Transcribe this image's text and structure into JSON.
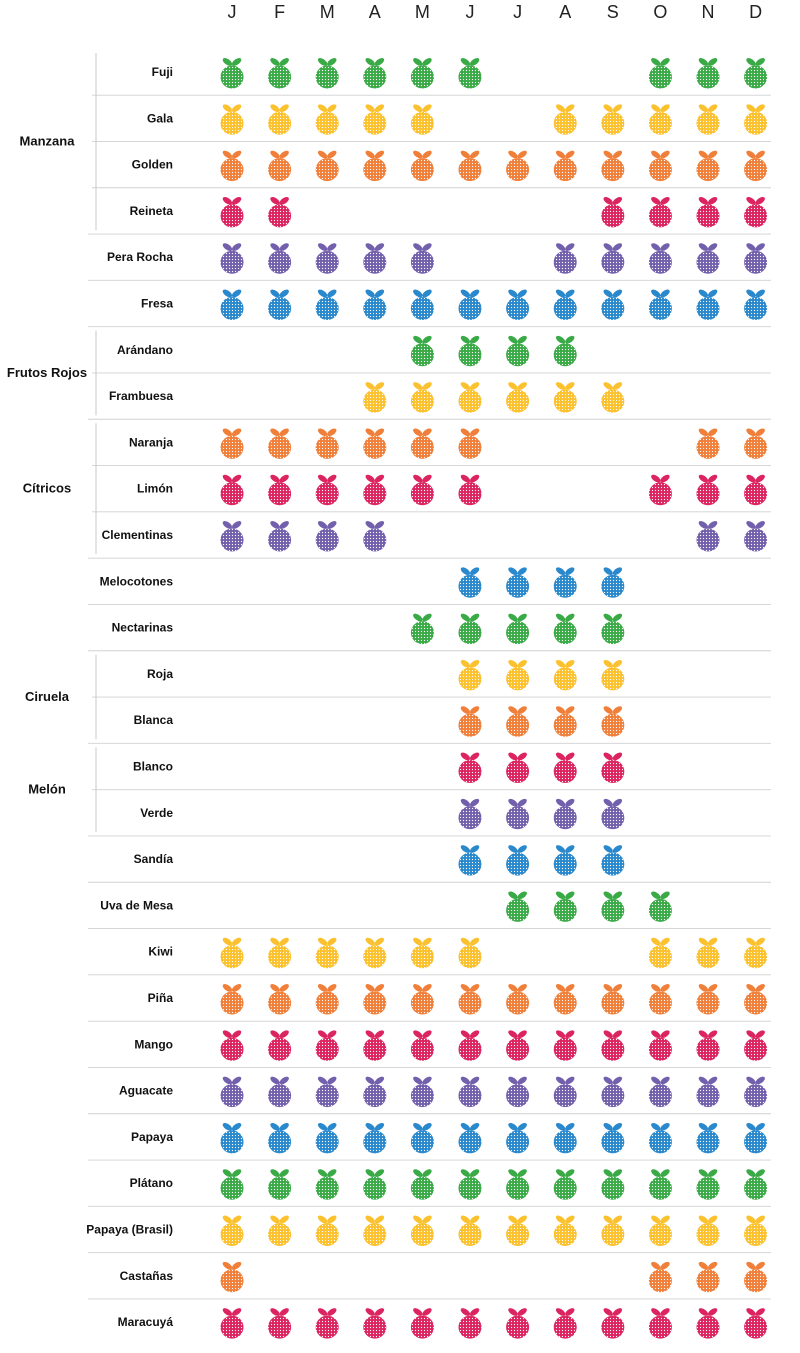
{
  "colors": {
    "green": "#3aaa47",
    "yellow": "#fbc12e",
    "orange": "#f07f3a",
    "red": "#dc2461",
    "purple": "#7360ad",
    "blue": "#2a88cc"
  },
  "chart_data": {
    "type": "table",
    "months": [
      "J",
      "F",
      "M",
      "A",
      "M",
      "J",
      "J",
      "A",
      "S",
      "O",
      "N",
      "D"
    ],
    "groups": [
      {
        "label": "Manzana",
        "first_row": 0,
        "last_row": 3
      },
      {
        "label": "Frutos Rojos",
        "first_row": 6,
        "last_row": 7
      },
      {
        "label": "Cítricos",
        "first_row": 8,
        "last_row": 10
      },
      {
        "label": "Ciruela",
        "first_row": 13,
        "last_row": 14
      },
      {
        "label": "Melón",
        "first_row": 15,
        "last_row": 16
      }
    ],
    "rows": [
      {
        "label": "Fuji",
        "color": "green",
        "months": [
          1,
          1,
          1,
          1,
          1,
          1,
          0,
          0,
          0,
          1,
          1,
          1
        ]
      },
      {
        "label": "Gala",
        "color": "yellow",
        "months": [
          1,
          1,
          1,
          1,
          1,
          0,
          0,
          1,
          1,
          1,
          1,
          1
        ]
      },
      {
        "label": "Golden",
        "color": "orange",
        "months": [
          1,
          1,
          1,
          1,
          1,
          1,
          1,
          1,
          1,
          1,
          1,
          1
        ]
      },
      {
        "label": "Reineta",
        "color": "red",
        "months": [
          1,
          1,
          0,
          0,
          0,
          0,
          0,
          0,
          1,
          1,
          1,
          1
        ]
      },
      {
        "label": "Pera Rocha",
        "color": "purple",
        "months": [
          1,
          1,
          1,
          1,
          1,
          0,
          0,
          1,
          1,
          1,
          1,
          1
        ]
      },
      {
        "label": "Fresa",
        "color": "blue",
        "months": [
          1,
          1,
          1,
          1,
          1,
          1,
          1,
          1,
          1,
          1,
          1,
          1
        ]
      },
      {
        "label": "Arándano",
        "color": "green",
        "months": [
          0,
          0,
          0,
          0,
          1,
          1,
          1,
          1,
          0,
          0,
          0,
          0
        ]
      },
      {
        "label": "Frambuesa",
        "color": "yellow",
        "months": [
          0,
          0,
          0,
          1,
          1,
          1,
          1,
          1,
          1,
          0,
          0,
          0
        ]
      },
      {
        "label": "Naranja",
        "color": "orange",
        "months": [
          1,
          1,
          1,
          1,
          1,
          1,
          0,
          0,
          0,
          0,
          1,
          1
        ]
      },
      {
        "label": "Limón",
        "color": "red",
        "months": [
          1,
          1,
          1,
          1,
          1,
          1,
          0,
          0,
          0,
          1,
          1,
          1
        ]
      },
      {
        "label": "Clementinas",
        "color": "purple",
        "months": [
          1,
          1,
          1,
          1,
          0,
          0,
          0,
          0,
          0,
          0,
          1,
          1
        ]
      },
      {
        "label": "Melocotones",
        "color": "blue",
        "months": [
          0,
          0,
          0,
          0,
          0,
          1,
          1,
          1,
          1,
          0,
          0,
          0
        ]
      },
      {
        "label": "Nectarinas",
        "color": "green",
        "months": [
          0,
          0,
          0,
          0,
          1,
          1,
          1,
          1,
          1,
          0,
          0,
          0
        ]
      },
      {
        "label": "Roja",
        "color": "yellow",
        "months": [
          0,
          0,
          0,
          0,
          0,
          1,
          1,
          1,
          1,
          0,
          0,
          0
        ]
      },
      {
        "label": "Blanca",
        "color": "orange",
        "months": [
          0,
          0,
          0,
          0,
          0,
          1,
          1,
          1,
          1,
          0,
          0,
          0
        ]
      },
      {
        "label": "Blanco",
        "color": "red",
        "months": [
          0,
          0,
          0,
          0,
          0,
          1,
          1,
          1,
          1,
          0,
          0,
          0
        ]
      },
      {
        "label": "Verde",
        "color": "purple",
        "months": [
          0,
          0,
          0,
          0,
          0,
          1,
          1,
          1,
          1,
          0,
          0,
          0
        ]
      },
      {
        "label": "Sandía",
        "color": "blue",
        "months": [
          0,
          0,
          0,
          0,
          0,
          1,
          1,
          1,
          1,
          0,
          0,
          0
        ]
      },
      {
        "label": "Uva de Mesa",
        "color": "green",
        "months": [
          0,
          0,
          0,
          0,
          0,
          0,
          1,
          1,
          1,
          1,
          0,
          0
        ]
      },
      {
        "label": "Kiwi",
        "color": "yellow",
        "months": [
          1,
          1,
          1,
          1,
          1,
          1,
          0,
          0,
          0,
          1,
          1,
          1
        ]
      },
      {
        "label": "Piña",
        "color": "orange",
        "months": [
          1,
          1,
          1,
          1,
          1,
          1,
          1,
          1,
          1,
          1,
          1,
          1
        ]
      },
      {
        "label": "Mango",
        "color": "red",
        "months": [
          1,
          1,
          1,
          1,
          1,
          1,
          1,
          1,
          1,
          1,
          1,
          1
        ]
      },
      {
        "label": "Aguacate",
        "color": "purple",
        "months": [
          1,
          1,
          1,
          1,
          1,
          1,
          1,
          1,
          1,
          1,
          1,
          1
        ]
      },
      {
        "label": "Papaya",
        "color": "blue",
        "months": [
          1,
          1,
          1,
          1,
          1,
          1,
          1,
          1,
          1,
          1,
          1,
          1
        ]
      },
      {
        "label": "Plátano",
        "color": "green",
        "months": [
          1,
          1,
          1,
          1,
          1,
          1,
          1,
          1,
          1,
          1,
          1,
          1
        ]
      },
      {
        "label": "Papaya (Brasil)",
        "color": "yellow",
        "months": [
          1,
          1,
          1,
          1,
          1,
          1,
          1,
          1,
          1,
          1,
          1,
          1
        ]
      },
      {
        "label": "Castañas",
        "color": "orange",
        "months": [
          1,
          0,
          0,
          0,
          0,
          0,
          0,
          0,
          0,
          1,
          1,
          1
        ]
      },
      {
        "label": "Maracuyá",
        "color": "red",
        "months": [
          1,
          1,
          1,
          1,
          1,
          1,
          1,
          1,
          1,
          1,
          1,
          1
        ]
      }
    ]
  }
}
